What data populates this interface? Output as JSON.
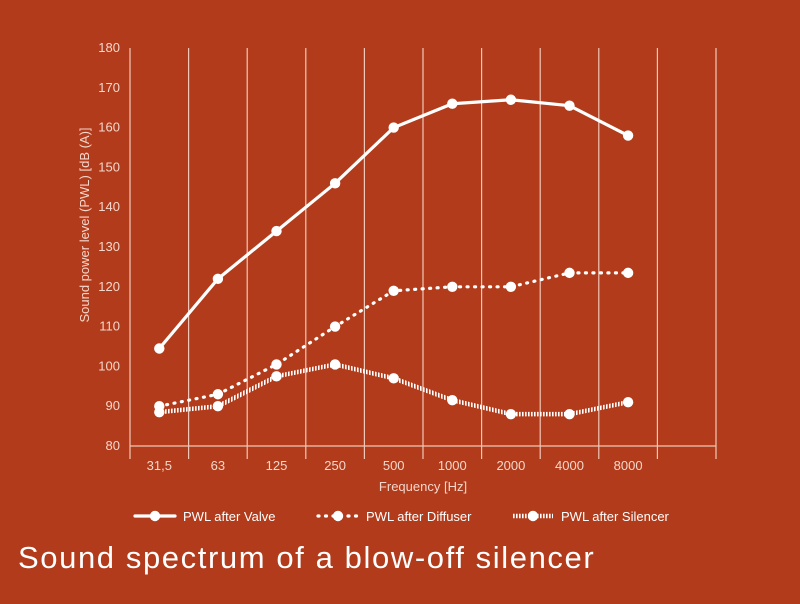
{
  "caption": "Sound spectrum of a blow-off silencer",
  "colors": {
    "background": "#b13b1a",
    "lines": "#ffffff",
    "grid": "#f0c8b8"
  },
  "chart_data": {
    "type": "line",
    "title": "",
    "xlabel": "Frequency [Hz]",
    "ylabel": "Sound power level (PWL) [dB (A)]",
    "categories": [
      "31,5",
      "63",
      "125",
      "250",
      "500",
      "1000",
      "2000",
      "4000",
      "8000"
    ],
    "ylim": [
      80,
      180
    ],
    "yticks": [
      80,
      90,
      100,
      110,
      120,
      130,
      140,
      150,
      160,
      170,
      180
    ],
    "grid": "vertical",
    "legend_position": "bottom",
    "series": [
      {
        "name": "PWL after Valve",
        "style": "solid",
        "values": [
          104.5,
          122,
          134,
          146,
          160,
          166,
          167,
          165.5,
          158
        ]
      },
      {
        "name": "PWL after Diffuser",
        "style": "dotted",
        "values": [
          90,
          93,
          100.5,
          110,
          119,
          120,
          120,
          123.5,
          123.5
        ]
      },
      {
        "name": "PWL after Silencer",
        "style": "hatched",
        "values": [
          88.5,
          90,
          97.5,
          100.5,
          97,
          91.5,
          88,
          88,
          91
        ]
      }
    ]
  }
}
